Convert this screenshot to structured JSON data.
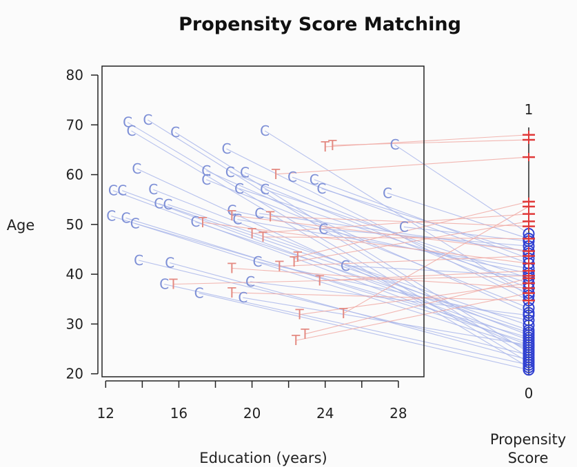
{
  "chart_data": {
    "type": "scatter",
    "title": "Propensity Score Matching",
    "xlabel": "Education (years)",
    "ylabel": "Age",
    "xlim": [
      11.8,
      29.4
    ],
    "ylim": [
      19.4,
      81.8
    ],
    "xticks": [
      12,
      16,
      20,
      24,
      28
    ],
    "yticks": [
      20,
      30,
      40,
      50,
      60,
      70,
      80
    ],
    "xminor": [
      14,
      18,
      22,
      26
    ],
    "score_axis": {
      "label": "Propensity Score",
      "top_label": "1",
      "bottom_label": "0"
    },
    "colors": {
      "control": "#7d8fd6",
      "treated": "#e48a82",
      "control_line": "#a9b6ea",
      "treated_line": "#f0a9a3",
      "control_strip": "#2f3fd0",
      "treated_strip": "#e03838"
    },
    "series": [
      {
        "name": "C",
        "points": [
          [
            13.2,
            70.5,
            0.05
          ],
          [
            13.4,
            68.8,
            0.03
          ],
          [
            14.3,
            71.0,
            0.07
          ],
          [
            15.8,
            68.5,
            0.09
          ],
          [
            13.7,
            61.2,
            0.1
          ],
          [
            12.4,
            56.8,
            0.12
          ],
          [
            12.9,
            56.8,
            0.14
          ],
          [
            14.6,
            57.0,
            0.16
          ],
          [
            14.9,
            54.2,
            0.18
          ],
          [
            15.4,
            54.0,
            0.2
          ],
          [
            12.3,
            51.7,
            0.11
          ],
          [
            13.1,
            51.3,
            0.13
          ],
          [
            13.6,
            50.2,
            0.15
          ],
          [
            16.9,
            50.5,
            0.17
          ],
          [
            13.8,
            42.8,
            0.08
          ],
          [
            15.5,
            42.3,
            0.06
          ],
          [
            15.2,
            38.0,
            0.04
          ],
          [
            17.1,
            36.2,
            0.02
          ],
          [
            18.6,
            65.2,
            0.3
          ],
          [
            20.7,
            68.8,
            0.32
          ],
          [
            17.5,
            60.8,
            0.25
          ],
          [
            17.5,
            59.0,
            0.27
          ],
          [
            18.8,
            60.5,
            0.33
          ],
          [
            19.6,
            60.4,
            0.35
          ],
          [
            19.3,
            57.2,
            0.37
          ],
          [
            20.7,
            57.0,
            0.39
          ],
          [
            22.2,
            59.5,
            0.45
          ],
          [
            23.4,
            59.0,
            0.47
          ],
          [
            23.8,
            57.2,
            0.49
          ],
          [
            18.9,
            52.8,
            0.41
          ],
          [
            19.2,
            51.0,
            0.43
          ],
          [
            20.4,
            52.2,
            0.5
          ],
          [
            20.3,
            42.5,
            0.22
          ],
          [
            19.9,
            38.5,
            0.24
          ],
          [
            19.5,
            35.3,
            0.12
          ],
          [
            23.9,
            49.1,
            0.52
          ],
          [
            25.1,
            41.7,
            0.4
          ],
          [
            27.4,
            56.3,
            0.55
          ],
          [
            27.8,
            66.0,
            0.57
          ],
          [
            28.3,
            49.5,
            0.54
          ]
        ]
      },
      {
        "name": "T",
        "points": [
          [
            24.0,
            65.6,
            0.97
          ],
          [
            24.4,
            65.9,
            0.95
          ],
          [
            21.3,
            60.1,
            0.88
          ],
          [
            18.9,
            51.8,
            0.5
          ],
          [
            21.0,
            51.6,
            0.6
          ],
          [
            17.3,
            50.4,
            0.45
          ],
          [
            20.0,
            48.2,
            0.65
          ],
          [
            20.6,
            47.5,
            0.55
          ],
          [
            22.5,
            43.5,
            0.7
          ],
          [
            22.3,
            42.5,
            0.62
          ],
          [
            21.5,
            41.6,
            0.48
          ],
          [
            18.9,
            41.2,
            0.35
          ],
          [
            15.7,
            38.0,
            0.4
          ],
          [
            18.9,
            36.3,
            0.3
          ],
          [
            23.7,
            38.7,
            0.42
          ],
          [
            22.6,
            31.9,
            0.37
          ],
          [
            25.0,
            32.1,
            0.68
          ],
          [
            22.9,
            28.0,
            0.39
          ],
          [
            22.4,
            26.7,
            0.33
          ]
        ]
      }
    ]
  }
}
